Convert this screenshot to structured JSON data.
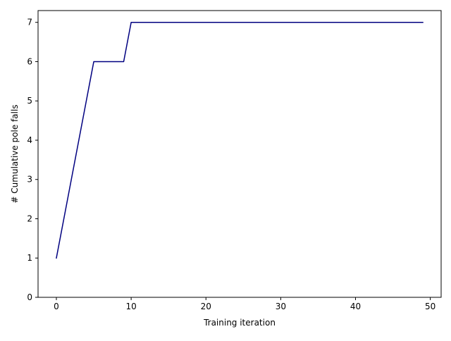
{
  "chart_data": {
    "type": "line",
    "title": "",
    "xlabel": "Training iteration",
    "ylabel": "# Cumulative pole falls",
    "xlim": [
      -2.45,
      51.45
    ],
    "ylim": [
      0,
      7.3
    ],
    "xticks": [
      0,
      10,
      20,
      30,
      40,
      50
    ],
    "yticks": [
      0,
      1,
      2,
      3,
      4,
      5,
      6,
      7
    ],
    "grid": false,
    "series": [
      {
        "color": "#000080",
        "x": [
          0,
          1,
          2,
          3,
          4,
          5,
          6,
          7,
          8,
          9,
          10,
          11,
          12,
          13,
          14,
          15,
          16,
          17,
          18,
          19,
          20,
          21,
          22,
          23,
          24,
          25,
          26,
          27,
          28,
          29,
          30,
          31,
          32,
          33,
          34,
          35,
          36,
          37,
          38,
          39,
          40,
          41,
          42,
          43,
          44,
          45,
          46,
          47,
          48,
          49
        ],
        "y": [
          1,
          2,
          3,
          4,
          5,
          6,
          6,
          6,
          6,
          6,
          7,
          7,
          7,
          7,
          7,
          7,
          7,
          7,
          7,
          7,
          7,
          7,
          7,
          7,
          7,
          7,
          7,
          7,
          7,
          7,
          7,
          7,
          7,
          7,
          7,
          7,
          7,
          7,
          7,
          7,
          7,
          7,
          7,
          7,
          7,
          7,
          7,
          7,
          7,
          7
        ]
      }
    ]
  }
}
